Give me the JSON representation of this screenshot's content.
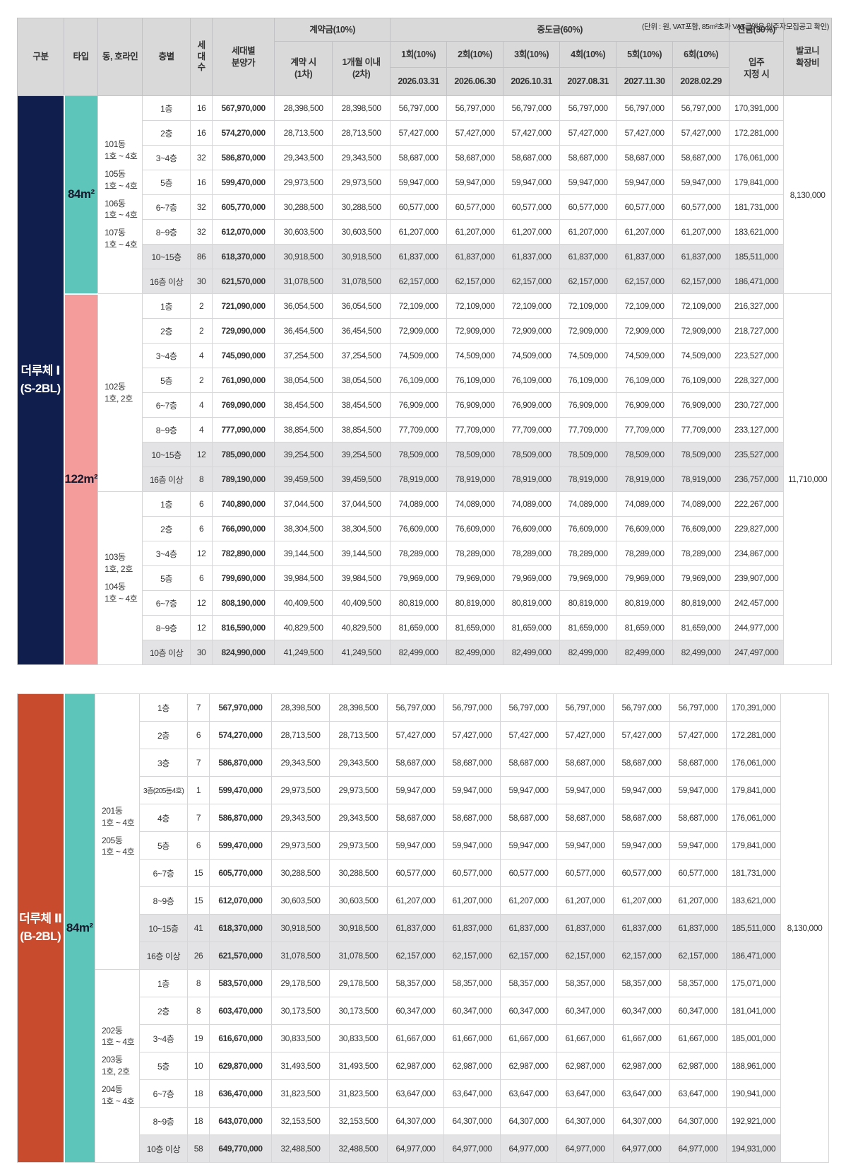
{
  "note": "(단위 : 원, VAT포함, 85m²초과 VAT금액은 입주자모집공고 확인)",
  "colors": {
    "section1": "#101e4d",
    "section2": "#c94b2d",
    "type_84": "#5ec5bb",
    "type_122": "#f49b9b",
    "header_bg": "#d9d9da",
    "shaded_row": "#e3e3e5"
  },
  "header": {
    "gubun": "구분",
    "type": "타입",
    "dong": "동, 호라인",
    "floor": "층별",
    "units": "세대수",
    "price": "세대별\n분양가",
    "contract_group": "계약금(10%)",
    "contract_cols": [
      "계약 시\n(1차)",
      "1개월 이내\n(2차)"
    ],
    "interim_group": "중도금(60%)",
    "interim_cols": [
      "1회(10%)",
      "2회(10%)",
      "3회(10%)",
      "4회(10%)",
      "5회(10%)",
      "6회(10%)"
    ],
    "interim_dates": [
      "2026.03.31",
      "2026.06.30",
      "2026.10.31",
      "2027.08.31",
      "2027.11.30",
      "2028.02.29"
    ],
    "balance_group": "잔금(30%)",
    "balance_col": "입주\n지정 시",
    "balcony": "발코니\n확장비"
  },
  "row_format": [
    "floor",
    "units",
    "price",
    "contract_each(1차=2차)",
    "interim_each(1~6회)",
    "balance",
    "shaded_flag"
  ],
  "sections": [
    {
      "id": "durucheh-1",
      "label": "더루체 Ⅰ\n(S-2BL)",
      "color": "#101e4d",
      "types": [
        {
          "label": "84m²",
          "color": "#5ec5bb",
          "balcony": "8,130,000",
          "groups": [
            {
              "dong": [
                "101동\n1호 ~ 4호",
                "105동\n1호 ~ 4호",
                "106동\n1호 ~ 4호",
                "107동\n1호 ~ 4호"
              ],
              "rows": [
                [
                  "1층",
                  "16",
                  "567,970,000",
                  "28,398,500",
                  "56,797,000",
                  "170,391,000",
                  0
                ],
                [
                  "2층",
                  "16",
                  "574,270,000",
                  "28,713,500",
                  "57,427,000",
                  "172,281,000",
                  0
                ],
                [
                  "3~4층",
                  "32",
                  "586,870,000",
                  "29,343,500",
                  "58,687,000",
                  "176,061,000",
                  0
                ],
                [
                  "5층",
                  "16",
                  "599,470,000",
                  "29,973,500",
                  "59,947,000",
                  "179,841,000",
                  0
                ],
                [
                  "6~7층",
                  "32",
                  "605,770,000",
                  "30,288,500",
                  "60,577,000",
                  "181,731,000",
                  0
                ],
                [
                  "8~9층",
                  "32",
                  "612,070,000",
                  "30,603,500",
                  "61,207,000",
                  "183,621,000",
                  0
                ],
                [
                  "10~15층",
                  "86",
                  "618,370,000",
                  "30,918,500",
                  "61,837,000",
                  "185,511,000",
                  1
                ],
                [
                  "16층 이상",
                  "30",
                  "621,570,000",
                  "31,078,500",
                  "62,157,000",
                  "186,471,000",
                  1
                ]
              ]
            }
          ]
        },
        {
          "label": "122m²",
          "color": "#f49b9b",
          "balcony": "11,710,000",
          "groups": [
            {
              "dong": [
                "102동\n1호, 2호"
              ],
              "rows": [
                [
                  "1층",
                  "2",
                  "721,090,000",
                  "36,054,500",
                  "72,109,000",
                  "216,327,000",
                  0
                ],
                [
                  "2층",
                  "2",
                  "729,090,000",
                  "36,454,500",
                  "72,909,000",
                  "218,727,000",
                  0
                ],
                [
                  "3~4층",
                  "4",
                  "745,090,000",
                  "37,254,500",
                  "74,509,000",
                  "223,527,000",
                  0
                ],
                [
                  "5층",
                  "2",
                  "761,090,000",
                  "38,054,500",
                  "76,109,000",
                  "228,327,000",
                  0
                ],
                [
                  "6~7층",
                  "4",
                  "769,090,000",
                  "38,454,500",
                  "76,909,000",
                  "230,727,000",
                  0
                ],
                [
                  "8~9층",
                  "4",
                  "777,090,000",
                  "38,854,500",
                  "77,709,000",
                  "233,127,000",
                  0
                ],
                [
                  "10~15층",
                  "12",
                  "785,090,000",
                  "39,254,500",
                  "78,509,000",
                  "235,527,000",
                  1
                ],
                [
                  "16층 이상",
                  "8",
                  "789,190,000",
                  "39,459,500",
                  "78,919,000",
                  "236,757,000",
                  1
                ]
              ]
            },
            {
              "dong": [
                "103동\n1호, 2호",
                "104동\n1호 ~ 4호"
              ],
              "rows": [
                [
                  "1층",
                  "6",
                  "740,890,000",
                  "37,044,500",
                  "74,089,000",
                  "222,267,000",
                  0
                ],
                [
                  "2층",
                  "6",
                  "766,090,000",
                  "38,304,500",
                  "76,609,000",
                  "229,827,000",
                  0
                ],
                [
                  "3~4층",
                  "12",
                  "782,890,000",
                  "39,144,500",
                  "78,289,000",
                  "234,867,000",
                  0
                ],
                [
                  "5층",
                  "6",
                  "799,690,000",
                  "39,984,500",
                  "79,969,000",
                  "239,907,000",
                  0
                ],
                [
                  "6~7층",
                  "12",
                  "808,190,000",
                  "40,409,500",
                  "80,819,000",
                  "242,457,000",
                  0
                ],
                [
                  "8~9층",
                  "12",
                  "816,590,000",
                  "40,829,500",
                  "81,659,000",
                  "244,977,000",
                  0
                ],
                [
                  "10층 이상",
                  "30",
                  "824,990,000",
                  "41,249,500",
                  "82,499,000",
                  "247,497,000",
                  1
                ]
              ]
            }
          ]
        }
      ]
    },
    {
      "id": "durucheh-2",
      "label": "더루체 Ⅱ\n(B-2BL)",
      "color": "#c94b2d",
      "types": [
        {
          "label": "84m²",
          "color": "#5ec5bb",
          "balcony": "8,130,000",
          "groups": [
            {
              "dong": [
                "201동\n1호 ~ 4호",
                "205동\n1호 ~ 4호"
              ],
              "rows": [
                [
                  "1층",
                  "7",
                  "567,970,000",
                  "28,398,500",
                  "56,797,000",
                  "170,391,000",
                  0
                ],
                [
                  "2층",
                  "6",
                  "574,270,000",
                  "28,713,500",
                  "57,427,000",
                  "172,281,000",
                  0
                ],
                [
                  "3층",
                  "7",
                  "586,870,000",
                  "29,343,500",
                  "58,687,000",
                  "176,061,000",
                  0
                ],
                [
                  "3층(205동4호)",
                  "1",
                  "599,470,000",
                  "29,973,500",
                  "59,947,000",
                  "179,841,000",
                  0
                ],
                [
                  "4층",
                  "7",
                  "586,870,000",
                  "29,343,500",
                  "58,687,000",
                  "176,061,000",
                  0
                ],
                [
                  "5층",
                  "6",
                  "599,470,000",
                  "29,973,500",
                  "59,947,000",
                  "179,841,000",
                  0
                ],
                [
                  "6~7층",
                  "15",
                  "605,770,000",
                  "30,288,500",
                  "60,577,000",
                  "181,731,000",
                  0
                ],
                [
                  "8~9층",
                  "15",
                  "612,070,000",
                  "30,603,500",
                  "61,207,000",
                  "183,621,000",
                  0
                ],
                [
                  "10~15층",
                  "41",
                  "618,370,000",
                  "30,918,500",
                  "61,837,000",
                  "185,511,000",
                  1
                ],
                [
                  "16층 이상",
                  "26",
                  "621,570,000",
                  "31,078,500",
                  "62,157,000",
                  "186,471,000",
                  1
                ]
              ]
            },
            {
              "dong": [
                "202동\n1호 ~ 4호",
                "203동\n1호, 2호",
                "204동\n1호 ~ 4호"
              ],
              "rows": [
                [
                  "1층",
                  "8",
                  "583,570,000",
                  "29,178,500",
                  "58,357,000",
                  "175,071,000",
                  0
                ],
                [
                  "2층",
                  "8",
                  "603,470,000",
                  "30,173,500",
                  "60,347,000",
                  "181,041,000",
                  0
                ],
                [
                  "3~4층",
                  "19",
                  "616,670,000",
                  "30,833,500",
                  "61,667,000",
                  "185,001,000",
                  0
                ],
                [
                  "5층",
                  "10",
                  "629,870,000",
                  "31,493,500",
                  "62,987,000",
                  "188,961,000",
                  0
                ],
                [
                  "6~7층",
                  "18",
                  "636,470,000",
                  "31,823,500",
                  "63,647,000",
                  "190,941,000",
                  0
                ],
                [
                  "8~9층",
                  "18",
                  "643,070,000",
                  "32,153,500",
                  "64,307,000",
                  "192,921,000",
                  0
                ],
                [
                  "10층 이상",
                  "58",
                  "649,770,000",
                  "32,488,500",
                  "64,977,000",
                  "194,931,000",
                  1
                ]
              ]
            }
          ]
        }
      ]
    }
  ]
}
